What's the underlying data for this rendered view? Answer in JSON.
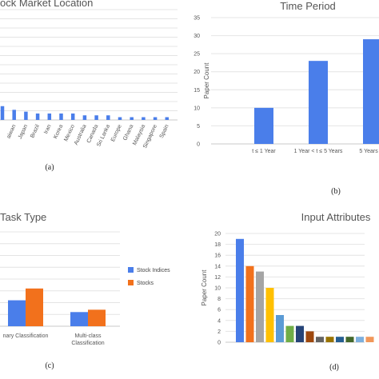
{
  "colors": {
    "blue": "#4a7eea",
    "orange": "#f2711c",
    "grid": "#e4e4e4",
    "axis": "#c8c8c8"
  },
  "chart_data": [
    {
      "id": "a",
      "panel_label": "(a)",
      "type": "bar",
      "title": "ock Market Location",
      "categories": [
        "",
        "aiwan",
        "Japan",
        "Brazil",
        "Iran",
        "Korea",
        "Mexico",
        "Australia",
        "Canada",
        "Sri Lanka",
        "Europe",
        "Ghana",
        "Malaysia",
        "Singapore",
        "Spain"
      ],
      "values": [
        1.5,
        1.1,
        0.9,
        0.7,
        0.7,
        0.7,
        0.7,
        0.5,
        0.5,
        0.5,
        0.3,
        0.3,
        0.3,
        0.3,
        0.3
      ],
      "ylim": [
        0,
        12
      ],
      "yticks": [
        0,
        1,
        2,
        3,
        4,
        5,
        6,
        7,
        8,
        9,
        10,
        11,
        12
      ],
      "grid": true
    },
    {
      "id": "b",
      "panel_label": "(b)",
      "type": "bar",
      "title": "Time Period",
      "ylabel": "Paper Count",
      "categories": [
        "t ≤ 1 Year",
        "1 Year < t ≤ 5 Years",
        "5 Years < t"
      ],
      "values": [
        10,
        23,
        29
      ],
      "ylim": [
        0,
        35
      ],
      "yticks": [
        0,
        5,
        10,
        15,
        20,
        25,
        30,
        35
      ],
      "grid": true
    },
    {
      "id": "c",
      "panel_label": "(c)",
      "type": "bar",
      "title": "Task Type",
      "categories": [
        "nary Classification",
        "Multi-class Classification"
      ],
      "series": [
        {
          "name": "Stock Indices",
          "values": [
            11,
            6
          ]
        },
        {
          "name": "Stocks",
          "values": [
            16,
            7
          ]
        }
      ],
      "ylim": [
        0,
        40
      ],
      "yticks": [
        0,
        5,
        10,
        15,
        20,
        25,
        30,
        35,
        40
      ],
      "grid": true,
      "legend": "right"
    },
    {
      "id": "d",
      "panel_label": "(d)",
      "type": "bar",
      "title": "Input Attributes",
      "ylabel": "Paper Count",
      "values": [
        19,
        14,
        13,
        10,
        5,
        3,
        3,
        2,
        1,
        1,
        1,
        1,
        1,
        1
      ],
      "bar_colors": [
        "#4a7eea",
        "#f2711c",
        "#a5a5a5",
        "#ffc000",
        "#5b9bd5",
        "#70ad47",
        "#264478",
        "#9e480e",
        "#636363",
        "#997300",
        "#255e91",
        "#43682b",
        "#7cafdd",
        "#f1975a"
      ],
      "ylim": [
        0,
        20
      ],
      "yticks": [
        0,
        2,
        4,
        6,
        8,
        10,
        12,
        14,
        16,
        18,
        20
      ],
      "grid": true
    }
  ]
}
